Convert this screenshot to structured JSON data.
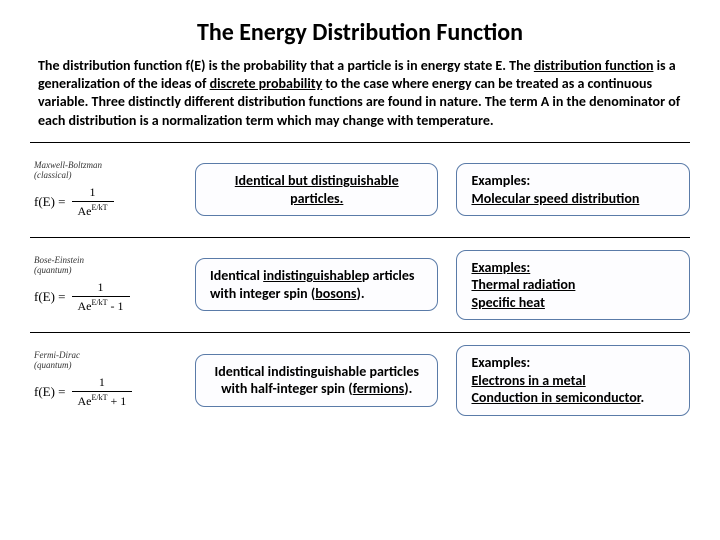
{
  "title": "The Energy Distribution Function",
  "intro": {
    "p1": "The distribution function f(E) is the probability that a particle is in energy state E. The ",
    "l1": "distribution function",
    "p2": " is a generalization of the ideas of ",
    "l2": "discrete probability",
    "p3": " to the case where energy can be treated as a continuous variable. Three distinctly different distribution functions are found in nature. The term A in the denominator of each distribution is a normalization term which may change with temperature."
  },
  "rows": [
    {
      "name": "Maxwell-Boltzman",
      "sub": "(classical)",
      "lhs": "f(E) =",
      "num": "1",
      "den_pre": "Ae",
      "den_exp": "E/kT",
      "den_post": "",
      "desc": "Identical but distinguishable particles.",
      "ex_label": "Examples:",
      "ex1": "Molecular speed distribution",
      "ex2": ""
    },
    {
      "name": "Bose-Einstein",
      "sub": "(quantum)",
      "lhs": "f(E) =",
      "num": "1",
      "den_pre": "Ae",
      "den_exp": "E/kT",
      "den_post": " - 1",
      "desc_p1": "Identical ",
      "desc_l1": "indistinguishable",
      "desc_p2": "p articles with integer spin (",
      "desc_l2": "bosons",
      "desc_p3": ").",
      "ex_label": "Examples:",
      "ex1": "Thermal radiation",
      "ex2": "Specific heat"
    },
    {
      "name": "Fermi-Dirac",
      "sub": "(quantum)",
      "lhs": "f(E) =",
      "num": "1",
      "den_pre": "Ae",
      "den_exp": "E/kT",
      "den_post": " + 1",
      "desc": "Identical indistinguishable particles with half-integer spin (",
      "desc_l1": "fermions",
      "desc_p2": ").",
      "ex_label": "Examples:",
      "ex1": "Electrons in a metal",
      "ex2": "Conduction in semiconductor",
      "ex2_suffix": "."
    }
  ],
  "colors": {
    "box_border": "#5a7ba8",
    "text": "#000000",
    "background": "#ffffff"
  }
}
